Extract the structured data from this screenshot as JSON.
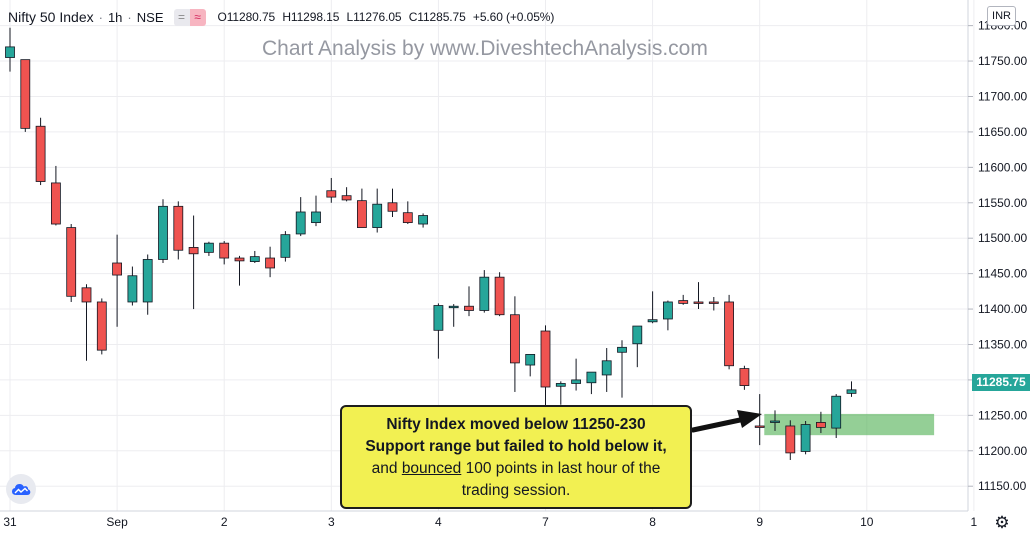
{
  "header": {
    "symbol": "Nifty 50 Index",
    "interval": "1h",
    "exchange": "NSE",
    "toggle_left": "=",
    "toggle_right": "≈",
    "ohlc": {
      "o_key": "O",
      "o": "11280.75",
      "h_key": "H",
      "h": "11298.15",
      "l_key": "L",
      "l": "11276.05",
      "c_key": "C",
      "c": "11285.75",
      "change": "+5.60 (+0.05%)"
    }
  },
  "watermark": "Chart Analysis by www.DiveshtechAnalysis.com",
  "currency_badge": "INR",
  "last_price_label": "11285.75",
  "annotation": {
    "line1": "Nifty Index moved below 11250-230",
    "line2": "Support range but failed to hold below it,",
    "line3_pre": "and ",
    "line3_underlined": "bounced",
    "line3_post": " 100 points in last hour of the",
    "line4": "trading session."
  },
  "settings_icon": "gear-icon",
  "logo_icon": "cloud-logo-icon",
  "chart_data": {
    "type": "candlestick",
    "title": "",
    "xlabel": "",
    "ylabel": "",
    "ylim": [
      11115,
      11815
    ],
    "y_ticks": [
      11150,
      11200,
      11250,
      11300,
      11350,
      11400,
      11450,
      11500,
      11550,
      11600,
      11650,
      11700,
      11750,
      11800
    ],
    "y_tick_labels": [
      "11150.00",
      "11200.00",
      "11250.00",
      "11300.00",
      "11350.00",
      "11400.00",
      "11450.00",
      "11500.00",
      "11550.00",
      "11600.00",
      "11650.00",
      "11700.00",
      "11750.00",
      "11800.00"
    ],
    "x_tick_labels": [
      {
        "bar": 0,
        "label": "31"
      },
      {
        "bar": 7,
        "label": "Sep"
      },
      {
        "bar": 14,
        "label": "2"
      },
      {
        "bar": 21,
        "label": "3"
      },
      {
        "bar": 28,
        "label": "4"
      },
      {
        "bar": 35,
        "label": "7"
      },
      {
        "bar": 42,
        "label": "8"
      },
      {
        "bar": 49,
        "label": "9"
      },
      {
        "bar": 56,
        "label": "10"
      },
      {
        "bar": 63,
        "label": "1"
      }
    ],
    "grid": true,
    "colors": {
      "up": "#26a69a",
      "down": "#ef5350",
      "wick": "#131722",
      "support_zone": "#4caf50",
      "grid": "#ededf0"
    },
    "support_zone": {
      "from": 11222,
      "to": 11252,
      "bar_start": 49.3,
      "bar_end": 60.4
    },
    "candles": [
      {
        "o": 11755,
        "h": 11797,
        "l": 11735,
        "c": 11770
      },
      {
        "o": 11752,
        "h": 11752,
        "l": 11650,
        "c": 11655
      },
      {
        "o": 11658,
        "h": 11670,
        "l": 11575,
        "c": 11580
      },
      {
        "o": 11578,
        "h": 11602,
        "l": 11518,
        "c": 11520
      },
      {
        "o": 11515,
        "h": 11520,
        "l": 11410,
        "c": 11418
      },
      {
        "o": 11430,
        "h": 11435,
        "l": 11327,
        "c": 11410
      },
      {
        "o": 11410,
        "h": 11415,
        "l": 11336,
        "c": 11342
      },
      {
        "o": 11465,
        "h": 11505,
        "l": 11375,
        "c": 11448
      },
      {
        "o": 11410,
        "h": 11460,
        "l": 11405,
        "c": 11447
      },
      {
        "o": 11410,
        "h": 11477,
        "l": 11392,
        "c": 11470
      },
      {
        "o": 11470,
        "h": 11555,
        "l": 11465,
        "c": 11545
      },
      {
        "o": 11545,
        "h": 11552,
        "l": 11470,
        "c": 11483
      },
      {
        "o": 11487,
        "h": 11532,
        "l": 11400,
        "c": 11478
      },
      {
        "o": 11480,
        "h": 11495,
        "l": 11475,
        "c": 11493
      },
      {
        "o": 11493,
        "h": 11496,
        "l": 11463,
        "c": 11472
      },
      {
        "o": 11472,
        "h": 11475,
        "l": 11433,
        "c": 11468
      },
      {
        "o": 11467,
        "h": 11482,
        "l": 11465,
        "c": 11474
      },
      {
        "o": 11472,
        "h": 11488,
        "l": 11445,
        "c": 11458
      },
      {
        "o": 11473,
        "h": 11510,
        "l": 11467,
        "c": 11505
      },
      {
        "o": 11506,
        "h": 11558,
        "l": 11503,
        "c": 11537
      },
      {
        "o": 11522,
        "h": 11560,
        "l": 11517,
        "c": 11537
      },
      {
        "o": 11567,
        "h": 11585,
        "l": 11550,
        "c": 11558
      },
      {
        "o": 11560,
        "h": 11572,
        "l": 11552,
        "c": 11554
      },
      {
        "o": 11553,
        "h": 11570,
        "l": 11515,
        "c": 11515
      },
      {
        "o": 11515,
        "h": 11570,
        "l": 11508,
        "c": 11548
      },
      {
        "o": 11550,
        "h": 11570,
        "l": 11530,
        "c": 11538
      },
      {
        "o": 11536,
        "h": 11552,
        "l": 11520,
        "c": 11522
      },
      {
        "o": 11520,
        "h": 11535,
        "l": 11515,
        "c": 11532
      },
      {
        "o": 11370,
        "h": 11408,
        "l": 11330,
        "c": 11405
      },
      {
        "o": 11402,
        "h": 11407,
        "l": 11375,
        "c": 11404
      },
      {
        "o": 11404,
        "h": 11432,
        "l": 11390,
        "c": 11398
      },
      {
        "o": 11398,
        "h": 11455,
        "l": 11395,
        "c": 11445
      },
      {
        "o": 11445,
        "h": 11452,
        "l": 11390,
        "c": 11392
      },
      {
        "o": 11392,
        "h": 11418,
        "l": 11283,
        "c": 11324
      },
      {
        "o": 11321,
        "h": 11336,
        "l": 11305,
        "c": 11336
      },
      {
        "o": 11369,
        "h": 11377,
        "l": 11240,
        "c": 11290
      },
      {
        "o": 11291,
        "h": 11298,
        "l": 11265,
        "c": 11295
      },
      {
        "o": 11295,
        "h": 11330,
        "l": 11285,
        "c": 11300
      },
      {
        "o": 11296,
        "h": 11310,
        "l": 11280,
        "c": 11311
      },
      {
        "o": 11307,
        "h": 11345,
        "l": 11283,
        "c": 11327
      },
      {
        "o": 11339,
        "h": 11356,
        "l": 11275,
        "c": 11346
      },
      {
        "o": 11351,
        "h": 11375,
        "l": 11318,
        "c": 11376
      },
      {
        "o": 11382,
        "h": 11425,
        "l": 11380,
        "c": 11385
      },
      {
        "o": 11386,
        "h": 11412,
        "l": 11370,
        "c": 11410
      },
      {
        "o": 11412,
        "h": 11420,
        "l": 11406,
        "c": 11408
      },
      {
        "o": 11410,
        "h": 11438,
        "l": 11400,
        "c": 11409
      },
      {
        "o": 11410,
        "h": 11417,
        "l": 11398,
        "c": 11409
      },
      {
        "o": 11410,
        "h": 11420,
        "l": 11315,
        "c": 11320
      },
      {
        "o": 11316,
        "h": 11320,
        "l": 11286,
        "c": 11292
      },
      {
        "o": 11235,
        "h": 11280,
        "l": 11208,
        "c": 11233
      },
      {
        "o": 11240,
        "h": 11257,
        "l": 11228,
        "c": 11242
      },
      {
        "o": 11235,
        "h": 11243,
        "l": 11187,
        "c": 11197
      },
      {
        "o": 11199,
        "h": 11242,
        "l": 11195,
        "c": 11237
      },
      {
        "o": 11240,
        "h": 11255,
        "l": 11225,
        "c": 11233
      },
      {
        "o": 11232,
        "h": 11280,
        "l": 11218,
        "c": 11277
      },
      {
        "o": 11281,
        "h": 11298,
        "l": 11276,
        "c": 11286
      }
    ]
  }
}
